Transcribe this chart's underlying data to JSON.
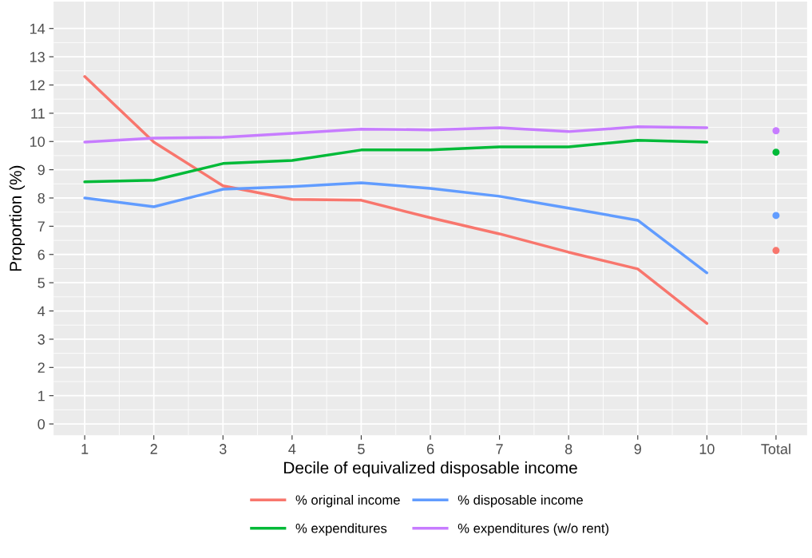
{
  "chart_data": {
    "type": "line",
    "xlabel": "Decile of equivalized disposable income",
    "ylabel": "Proportion (%)",
    "categories": [
      "1",
      "2",
      "3",
      "4",
      "5",
      "6",
      "7",
      "8",
      "9",
      "10",
      "Total"
    ],
    "ylim": [
      -0.4,
      14.95
    ],
    "yticks": [
      0,
      1,
      2,
      3,
      4,
      5,
      6,
      7,
      8,
      9,
      10,
      11,
      12,
      13,
      14
    ],
    "grid": true,
    "legend": "bottom",
    "series": [
      {
        "name": "% original income",
        "color": "#f8766d",
        "values": [
          12.3,
          9.98,
          8.43,
          7.95,
          7.92,
          7.3,
          6.73,
          6.08,
          5.49,
          3.56,
          null
        ]
      },
      {
        "name": "% disposable income",
        "color": "#619cff",
        "values": [
          8.0,
          7.69,
          8.31,
          8.4,
          8.54,
          8.34,
          8.06,
          7.64,
          7.21,
          5.35,
          null
        ]
      },
      {
        "name": "% expenditures",
        "color": "#00ba38",
        "values": [
          8.57,
          8.63,
          9.22,
          9.33,
          9.7,
          9.7,
          9.81,
          9.81,
          10.04,
          9.98,
          null
        ]
      },
      {
        "name": "% expenditures (w/o rent)",
        "color": "#c77cff",
        "values": [
          9.98,
          10.12,
          10.15,
          10.29,
          10.44,
          10.41,
          10.49,
          10.35,
          10.52,
          10.49,
          null
        ]
      },
      {
        "type": "scatter",
        "color": "#f8766d",
        "values": [
          null,
          null,
          null,
          null,
          null,
          null,
          null,
          null,
          null,
          null,
          6.14
        ]
      },
      {
        "type": "scatter",
        "color": "#619cff",
        "values": [
          null,
          null,
          null,
          null,
          null,
          null,
          null,
          null,
          null,
          null,
          7.38
        ]
      },
      {
        "type": "scatter",
        "color": "#00ba38",
        "values": [
          null,
          null,
          null,
          null,
          null,
          null,
          null,
          null,
          null,
          null,
          9.62
        ]
      },
      {
        "type": "scatter",
        "color": "#c77cff",
        "values": [
          null,
          null,
          null,
          null,
          null,
          null,
          null,
          null,
          null,
          null,
          10.38
        ]
      }
    ]
  }
}
